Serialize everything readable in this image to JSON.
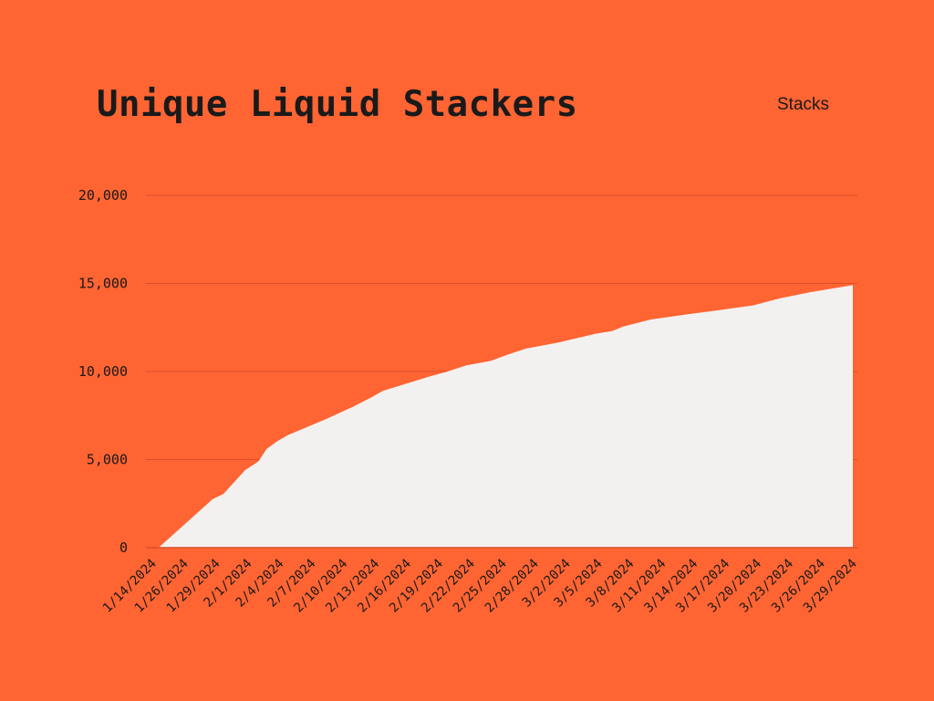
{
  "title": "Unique Liquid Stackers",
  "legend": {
    "label": "Stacks"
  },
  "colors": {
    "background": "#FF6433",
    "area": "#F3F1F0",
    "grid": "#D9502A",
    "text": "#1a1a1a"
  },
  "chart_data": {
    "type": "area",
    "title": "Unique Liquid Stackers",
    "xlabel": "",
    "ylabel": "",
    "ylim": [
      0,
      20000
    ],
    "yticks": [
      0,
      5000,
      10000,
      15000,
      20000
    ],
    "ytick_labels": [
      "0",
      "5,000",
      "10,000",
      "15,000",
      "20,000"
    ],
    "xtick_labels": [
      "1/14/2024",
      "1/26/2024",
      "1/29/2024",
      "2/1/2024",
      "2/4/2024",
      "2/7/2024",
      "2/10/2024",
      "2/13/2024",
      "2/16/2024",
      "2/19/2024",
      "2/22/2024",
      "2/25/2024",
      "2/28/2024",
      "3/2/2024",
      "3/5/2024",
      "3/8/2024",
      "3/11/2024",
      "3/14/2024",
      "3/17/2024",
      "3/20/2024",
      "3/23/2024",
      "3/26/2024",
      "3/29/2024"
    ],
    "grid": true,
    "legend_position": "top-right",
    "series": [
      {
        "name": "Stacks",
        "x": [
          0,
          0.3,
          2.3,
          2.7,
          3.5,
          4.0,
          4.3,
          4.7,
          5.1,
          6.5,
          7.5,
          8.2,
          8.6,
          10.3,
          11.0,
          11.7,
          12.6,
          13.2,
          13.9,
          15.1,
          16.5,
          17.1,
          17.5,
          18.5,
          19.9,
          20.9,
          22.3,
          23.3,
          24.4,
          26.0
        ],
        "values": [
          0,
          0,
          2750,
          3050,
          4400,
          4900,
          5600,
          6050,
          6400,
          7300,
          8000,
          8550,
          8900,
          9700,
          10000,
          10350,
          10600,
          10950,
          11300,
          11650,
          12150,
          12300,
          12550,
          12950,
          13250,
          13450,
          13750,
          14150,
          14500,
          14900
        ]
      }
    ]
  }
}
